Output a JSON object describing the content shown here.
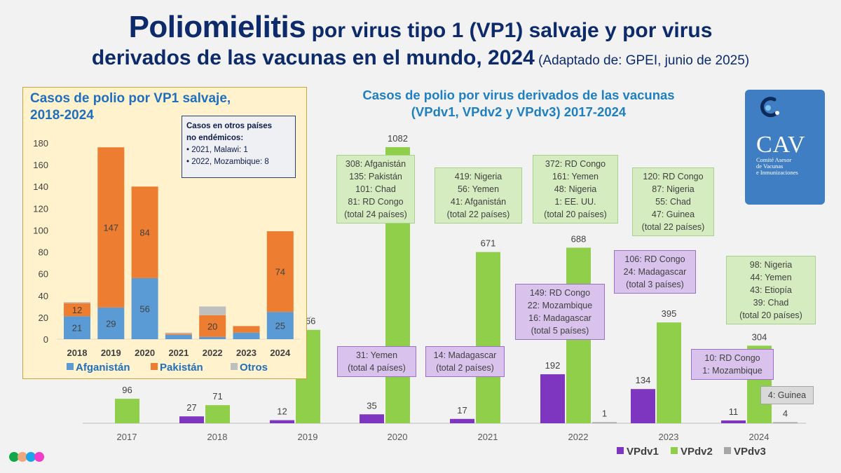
{
  "header": {
    "title_big": "Poliomielitis",
    "title_rest_line1": " por virus tipo 1 (VP1) salvaje y por virus",
    "title_line2": "derivados de las vacunas en el mundo, 2024",
    "source": " (Adaptado de: GPEI, junio de 2025)"
  },
  "logo": {
    "name": "CAV",
    "subtitle_lines": [
      "Comité Asesor",
      "de Vacunas",
      "e Inmunizaciones"
    ]
  },
  "decor_dots": [
    "#12a84a",
    "#f0a77c",
    "#1aa5ec",
    "#f03cc8"
  ],
  "note": {
    "title_line1": "Casos en otros países",
    "title_line2": "no endémicos:",
    "items": [
      "2021, Malawi: 1",
      "2022, Mozambique: 8"
    ]
  },
  "chart_data": [
    {
      "type": "bar",
      "stacked": true,
      "title": "Casos de polio por VP1 salvaje, 2018-2024",
      "categories": [
        "2018",
        "2019",
        "2020",
        "2021",
        "2022",
        "2023",
        "2024"
      ],
      "series": [
        {
          "name": "Afganistán",
          "color": "#5b9bd5",
          "values": [
            21,
            29,
            56,
            4,
            2,
            6,
            25
          ],
          "labels": [
            "21",
            "29",
            "56",
            "",
            "",
            "",
            "25"
          ]
        },
        {
          "name": "Pakistán",
          "color": "#ed7d31",
          "values": [
            12,
            147,
            84,
            1,
            20,
            6,
            74
          ],
          "labels": [
            "12",
            "147",
            "84",
            "",
            "20",
            "",
            "74"
          ]
        },
        {
          "name": "Otros",
          "color": "#bfbfbf",
          "values": [
            1,
            0,
            0,
            1,
            8,
            0,
            0
          ],
          "labels": [
            "",
            "",
            "",
            "",
            "",
            "",
            ""
          ]
        }
      ],
      "yticks": [
        0,
        20,
        40,
        60,
        80,
        100,
        120,
        140,
        160,
        180
      ],
      "ylim": [
        0,
        180
      ],
      "grid": false,
      "legend": "bottom"
    },
    {
      "type": "bar",
      "title": "Casos de polio por virus derivados de las vacunas (VPdv1, VPdv2 y VPdv3) 2017-2024",
      "categories": [
        "2017",
        "2018",
        "2019",
        "2020",
        "2021",
        "2022",
        "2023",
        "2024"
      ],
      "series": [
        {
          "name": "VPdv1",
          "color": "#7e36c0",
          "values": [
            0,
            27,
            12,
            35,
            17,
            192,
            134,
            11
          ]
        },
        {
          "name": "VPdv2",
          "color": "#8fcf4a",
          "values": [
            96,
            71,
            366,
            1082,
            671,
            688,
            395,
            304
          ]
        },
        {
          "name": "VPdv3",
          "color": "#a6a6a6",
          "values": [
            0,
            0,
            0,
            0,
            0,
            1,
            0,
            4
          ]
        }
      ],
      "data_labels": {
        "VPdv1": [
          "",
          "27",
          "12",
          "35",
          "17",
          "192",
          "134",
          "11"
        ],
        "VPdv2": [
          "96",
          "71",
          "366",
          "1082",
          "671",
          "688",
          "395",
          "304"
        ],
        "VPdv3": [
          "",
          "",
          "",
          "",
          "",
          "1",
          "",
          "4"
        ]
      },
      "ylim": [
        0,
        1082
      ],
      "grid": false,
      "legend": "bottom-right",
      "annotations": [
        {
          "series": "VPdv2",
          "year": "2020",
          "lines": [
            "308: Afganistán",
            "135: Pakistán",
            "101: Chad",
            "81: RD Congo",
            "(total 24 países)"
          ]
        },
        {
          "series": "VPdv2",
          "year": "2021",
          "lines": [
            "419: Nigeria",
            "56: Yemen",
            "41: Afganistán",
            "(total 22 países)"
          ]
        },
        {
          "series": "VPdv2",
          "year": "2022",
          "lines": [
            "372: RD Congo",
            "161: Yemen",
            "48: Nigeria",
            "1: EE. UU.",
            "(total 20 países)"
          ]
        },
        {
          "series": "VPdv2",
          "year": "2023",
          "lines": [
            "120: RD Congo",
            "87: Nigeria",
            "55: Chad",
            "47: Guinea",
            "(total 22 países)"
          ]
        },
        {
          "series": "VPdv2",
          "year": "2024",
          "lines": [
            "98: Nigeria",
            "44: Yemen",
            "43: Etiopía",
            "39: Chad",
            "(total 20 países)"
          ]
        },
        {
          "series": "VPdv1",
          "year": "2020",
          "lines": [
            "31: Yemen",
            "(total 4 países)"
          ]
        },
        {
          "series": "VPdv1",
          "year": "2021",
          "lines": [
            "14: Madagascar",
            "(total 2 países)"
          ]
        },
        {
          "series": "VPdv1",
          "year": "2022",
          "lines": [
            "149: RD Congo",
            "22: Mozambique",
            "16: Madagascar",
            "(total 5 países)"
          ]
        },
        {
          "series": "VPdv1",
          "year": "2023",
          "lines": [
            "106: RD Congo",
            "24: Madagascar",
            "(total 3 países)"
          ]
        },
        {
          "series": "VPdv1",
          "year": "2024",
          "lines": [
            "10: RD Congo",
            "1: Mozambique"
          ]
        },
        {
          "series": "VPdv3",
          "year": "2024",
          "lines": [
            "4: Guinea"
          ]
        }
      ]
    }
  ]
}
